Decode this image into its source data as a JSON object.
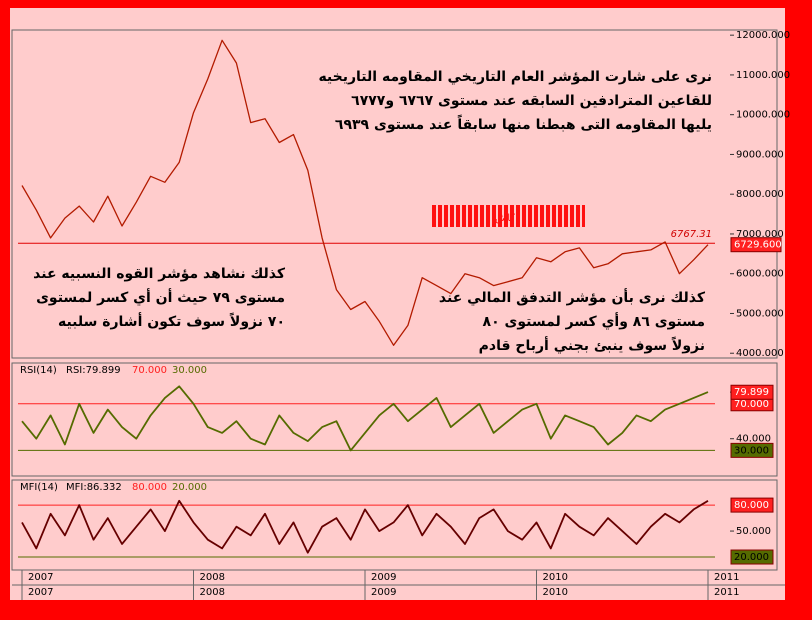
{
  "chart_data": [
    {
      "type": "line",
      "color": "#b31b00",
      "values": [
        8220,
        7600,
        6900,
        7400,
        7700,
        7300,
        7950,
        7200,
        7800,
        8450,
        8300,
        8800,
        10050,
        10900,
        11870,
        11300,
        9800,
        9900,
        9300,
        9500,
        8600,
        6900,
        5600,
        5100,
        5300,
        4800,
        4200,
        4700,
        5900,
        5700,
        5500,
        6000,
        5900,
        5700,
        5800,
        5900,
        6400,
        6300,
        6550,
        6650,
        6150,
        6250,
        6500,
        6550,
        6600,
        6800,
        6000,
        6350,
        6730
      ],
      "ylim": [
        3880,
        12130
      ],
      "yticks": [
        {
          "value": 4000,
          "label": "4000.000"
        },
        {
          "value": 5000,
          "label": "5000.000"
        },
        {
          "value": 6000,
          "label": "6000.000"
        },
        {
          "value": 7000,
          "label": "7000.000"
        },
        {
          "value": 8000,
          "label": "8000.000"
        },
        {
          "value": 9000,
          "label": "9000.000"
        },
        {
          "value": 10000,
          "label": "10000.000"
        },
        {
          "value": 11000,
          "label": "11000.000"
        },
        {
          "value": 12000,
          "label": "12000.000"
        }
      ],
      "reference_line": 6767.31,
      "last_value": {
        "value": 6729.6,
        "label": "6729.600"
      },
      "watermark": "كاش",
      "annotations": [
        [
          "نرى على شارت المؤشر العام التاريخي المقاومه التاريخيه",
          "للقاعين المترادفين السابقه عند مستوى ٦٧٦٧ و٦٧٧٧",
          "يليها المقاومه التى هبطنا منها سابقاً عند مستوى ٦٩٣٩"
        ],
        [
          "كذلك نشاهد مؤشر القوه النسبيه عند",
          "مستوى ٧٩ حيث أن أي كسر لمستوى",
          "٧٠ نزولاً سوف تكون أشارة سلبيه"
        ],
        [
          "كذلك نرى بأن مؤشر التدفق المالي عند",
          "مستوى ٨٦ وأي كسر لمستوى ٨٠",
          "نزولاً سوف ينبئ بجني أرباح قادم"
        ]
      ]
    },
    {
      "type": "line",
      "color": "#556b00",
      "indicator": "RSI(14)",
      "current_text": "RSI:79.899",
      "current": 79.899,
      "values": [
        55,
        40,
        60,
        35,
        70,
        45,
        65,
        50,
        40,
        60,
        75,
        85,
        70,
        50,
        45,
        55,
        40,
        35,
        60,
        45,
        38,
        50,
        55,
        30,
        45,
        60,
        70,
        55,
        65,
        75,
        50,
        60,
        70,
        45,
        55,
        65,
        70,
        40,
        60,
        55,
        50,
        35,
        45,
        60,
        55,
        65,
        70,
        75,
        80
      ],
      "ylim": [
        8,
        105
      ],
      "yticks": [
        {
          "value": 40,
          "label": "40.000"
        },
        {
          "value": 80,
          "label": "80.000"
        }
      ],
      "levels": [
        {
          "value": 70,
          "label": "70.000",
          "color": "#ff2020"
        },
        {
          "value": 30,
          "label": "30.000",
          "color": "#556b00"
        }
      ]
    },
    {
      "type": "line",
      "color": "#660000",
      "indicator": "MFI(14)",
      "current_text": "MFI:86.332",
      "values": [
        60,
        30,
        70,
        45,
        80,
        40,
        65,
        35,
        55,
        75,
        50,
        85,
        60,
        40,
        30,
        55,
        45,
        70,
        35,
        60,
        25,
        55,
        65,
        40,
        75,
        50,
        60,
        80,
        45,
        70,
        55,
        35,
        65,
        75,
        50,
        40,
        60,
        30,
        70,
        55,
        45,
        65,
        50,
        35,
        55,
        70,
        60,
        75,
        85
      ],
      "ylim": [
        5,
        109
      ],
      "yticks": [
        {
          "value": 50,
          "label": "50.000"
        }
      ],
      "levels": [
        {
          "value": 80,
          "label": "80.000",
          "color": "#ff2020"
        },
        {
          "value": 20,
          "label": "20.000",
          "color": "#556b00"
        }
      ],
      "categories": [
        "2007",
        null,
        null,
        null,
        null,
        null,
        null,
        null,
        null,
        null,
        null,
        null,
        "2008",
        null,
        null,
        null,
        null,
        null,
        null,
        null,
        null,
        null,
        null,
        null,
        "2009",
        null,
        null,
        null,
        null,
        null,
        null,
        null,
        null,
        null,
        null,
        null,
        "2010",
        null,
        null,
        null,
        null,
        null,
        null,
        null,
        null,
        null,
        null,
        null,
        "2011"
      ]
    }
  ]
}
